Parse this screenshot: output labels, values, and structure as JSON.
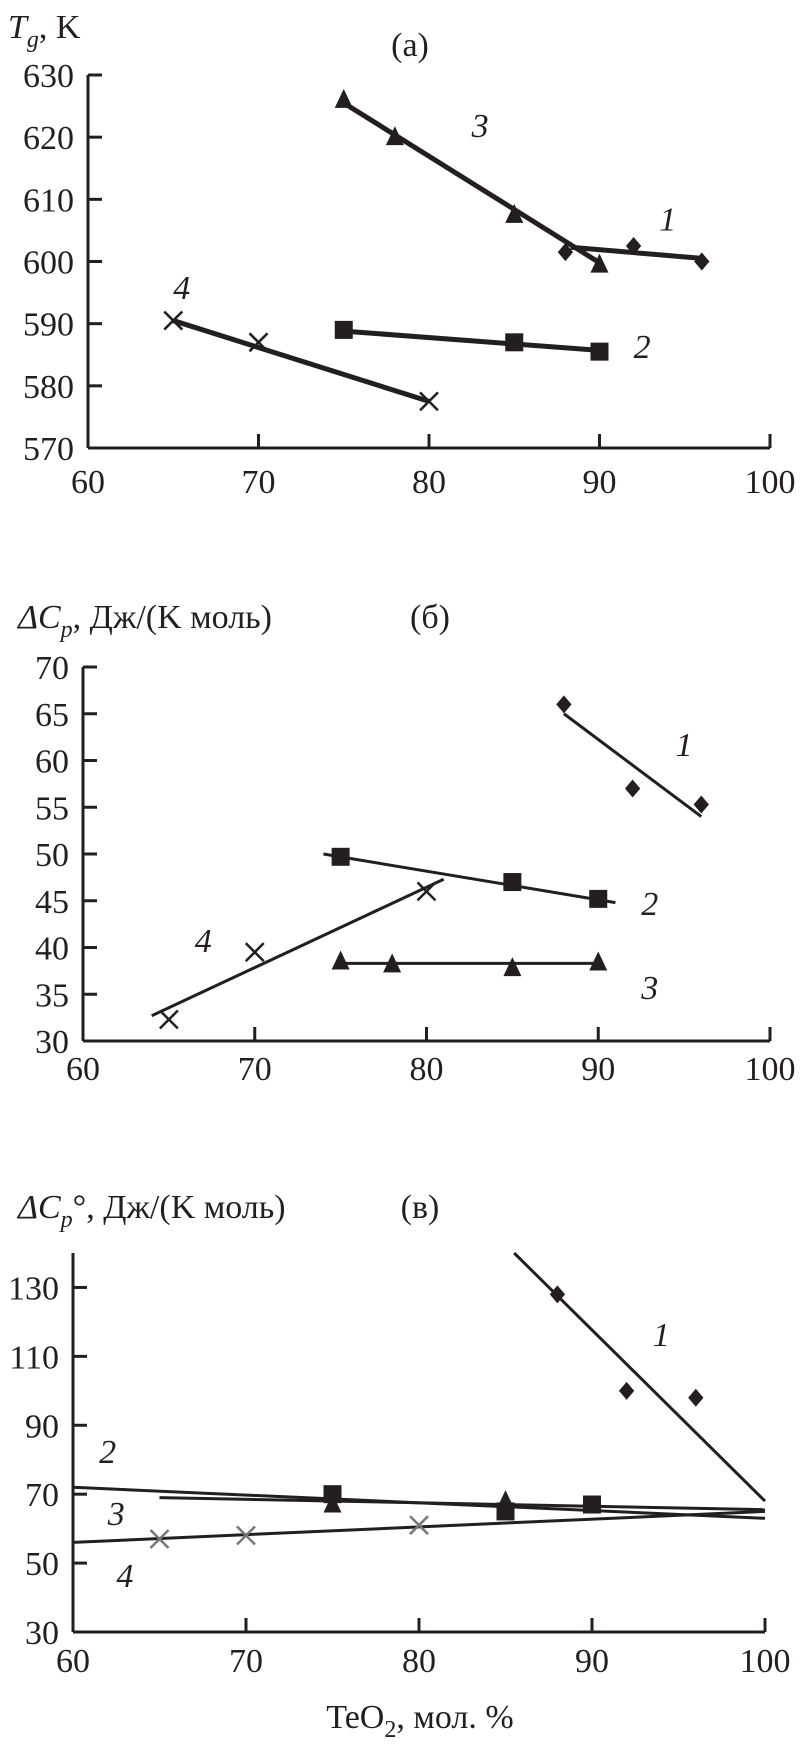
{
  "chart_data": [
    {
      "type": "line",
      "panel": "(a)",
      "title_main": "T",
      "title_sub": "g",
      "title_rest": ", K",
      "xlabel": "",
      "xlim": [
        60,
        100
      ],
      "ylim": [
        570,
        630
      ],
      "xticks": [
        60,
        70,
        80,
        90,
        100
      ],
      "yticks": [
        570,
        580,
        590,
        600,
        610,
        620,
        630
      ],
      "grid": false,
      "series": [
        {
          "name": "1",
          "marker": "diamond",
          "color": "#231f20",
          "x": [
            88,
            92,
            96
          ],
          "y": [
            601.5,
            602.5,
            600
          ],
          "fit": [
            [
              88.3,
              602.3
            ],
            [
              96,
              600.5
            ]
          ],
          "label_at": [
            94,
            605
          ]
        },
        {
          "name": "2",
          "marker": "square",
          "color": "#231f20",
          "x": [
            75,
            85,
            90
          ],
          "y": [
            589,
            587,
            585.5
          ],
          "fit": [
            [
              75,
              588.8
            ],
            [
              90,
              585.7
            ]
          ],
          "label_at": [
            92.5,
            584.5
          ]
        },
        {
          "name": "3",
          "marker": "triangle",
          "color": "#231f20",
          "x": [
            75,
            78,
            85,
            90
          ],
          "y": [
            626,
            620,
            607.5,
            599.5
          ],
          "fit": [
            [
              75,
              625.5
            ],
            [
              90,
              599.8
            ]
          ],
          "label_at": [
            83,
            620
          ]
        },
        {
          "name": "4",
          "marker": "cross",
          "color": "#231f20",
          "x": [
            65,
            70,
            80
          ],
          "y": [
            590.5,
            587,
            577.5
          ],
          "fit": [
            [
              65,
              590.5
            ],
            [
              80,
              577.5
            ]
          ],
          "label_at": [
            65.5,
            594
          ]
        }
      ]
    },
    {
      "type": "line",
      "panel": "(б)",
      "title_main": "ΔC",
      "title_sub": "p",
      "title_rest": ", Дж/(K моль)",
      "xlabel": "",
      "xlim": [
        60,
        100
      ],
      "ylim": [
        30,
        70
      ],
      "xticks": [
        60,
        70,
        80,
        90,
        100
      ],
      "yticks": [
        30,
        35,
        40,
        45,
        50,
        55,
        60,
        65,
        70
      ],
      "grid": false,
      "series": [
        {
          "name": "1",
          "marker": "diamond",
          "color": "#231f20",
          "x": [
            88,
            92,
            96
          ],
          "y": [
            66,
            57,
            55.3
          ],
          "fit": [
            [
              88,
              65
            ],
            [
              96,
              54
            ]
          ],
          "label_at": [
            95,
            60.5
          ]
        },
        {
          "name": "2",
          "marker": "square",
          "color": "#231f20",
          "x": [
            75,
            85,
            90
          ],
          "y": [
            49.7,
            47,
            45.2
          ],
          "fit": [
            [
              74,
              50
            ],
            [
              91,
              44.8
            ]
          ],
          "label_at": [
            93,
            43.5
          ]
        },
        {
          "name": "3",
          "marker": "triangle",
          "color": "#231f20",
          "x": [
            75,
            78,
            85,
            90
          ],
          "y": [
            38.5,
            38.2,
            37.8,
            38.4
          ],
          "fit": [
            [
              75,
              38.3
            ],
            [
              90,
              38.3
            ]
          ],
          "label_at": [
            93,
            34.5
          ]
        },
        {
          "name": "4",
          "marker": "cross",
          "color": "#231f20",
          "x": [
            65,
            70,
            80
          ],
          "y": [
            32.3,
            39.5,
            46
          ],
          "fit": [
            [
              64,
              32.7
            ],
            [
              81,
              47.3
            ]
          ],
          "label_at": [
            67,
            39.5
          ]
        }
      ]
    },
    {
      "type": "line",
      "panel": "(в)",
      "title_main": "ΔC",
      "title_sub": "p",
      "title_rest": "°, Дж/(K моль)",
      "xlabel_main": "TeO",
      "xlabel_sub": "2",
      "xlabel_rest": ",  мол. %",
      "xlim": [
        60,
        100
      ],
      "ylim": [
        30,
        140
      ],
      "xticks": [
        60,
        70,
        80,
        90,
        100
      ],
      "yticks": [
        30,
        50,
        70,
        90,
        110,
        130
      ],
      "grid": false,
      "series": [
        {
          "name": "1",
          "marker": "diamond",
          "color": "#231f20",
          "x": [
            88,
            92,
            96
          ],
          "y": [
            128,
            100,
            98
          ],
          "fit": [
            [
              85.5,
              140
            ],
            [
              100,
              68
            ]
          ],
          "label_at": [
            94,
            113
          ]
        },
        {
          "name": "2",
          "marker": "square",
          "color": "#231f20",
          "x": [
            75,
            85,
            90
          ],
          "y": [
            70,
            65,
            67
          ],
          "fit": [
            [
              60,
              72
            ],
            [
              100,
              63
            ]
          ],
          "label_at": [
            62,
            79
          ]
        },
        {
          "name": "3",
          "marker": "triangle",
          "color": "#231f20",
          "x": [
            75,
            85
          ],
          "y": [
            67,
            68
          ],
          "fit": [
            [
              65,
              69
            ],
            [
              100,
              65.5
            ]
          ],
          "label_at": [
            62.5,
            61
          ]
        },
        {
          "name": "4",
          "marker": "cross",
          "color": "#777777",
          "x": [
            65,
            70,
            80
          ],
          "y": [
            57,
            58,
            61
          ],
          "fit": [
            [
              60,
              56
            ],
            [
              100,
              65
            ]
          ],
          "label_at": [
            63,
            43
          ]
        }
      ]
    }
  ]
}
